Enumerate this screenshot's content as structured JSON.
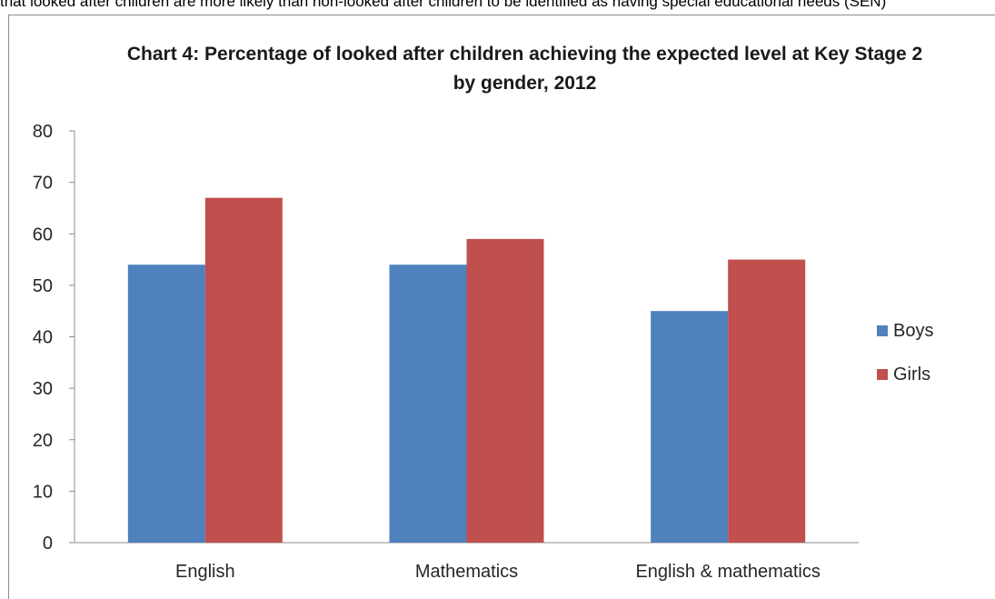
{
  "header_fragment": "that looked after children are more likely than non-looked after children to be identified as having special educational needs (SEN)",
  "colors": {
    "boys": "#4f81bd",
    "girls": "#c0504d",
    "axis": "#8c8c8c"
  },
  "chart_data": {
    "type": "bar",
    "title": "Chart 4: Percentage of looked after children achieving the  expected level at Key Stage 2 by gender, 2012",
    "categories": [
      "English",
      "Mathematics",
      "English & mathematics"
    ],
    "series": [
      {
        "name": "Boys",
        "values": [
          54,
          54,
          45
        ]
      },
      {
        "name": "Girls",
        "values": [
          67,
          59,
          55
        ]
      }
    ],
    "ylim": [
      0,
      80
    ],
    "yticks": [
      0,
      10,
      20,
      30,
      40,
      50,
      60,
      70,
      80
    ],
    "grid": false,
    "legend_position": "right"
  }
}
